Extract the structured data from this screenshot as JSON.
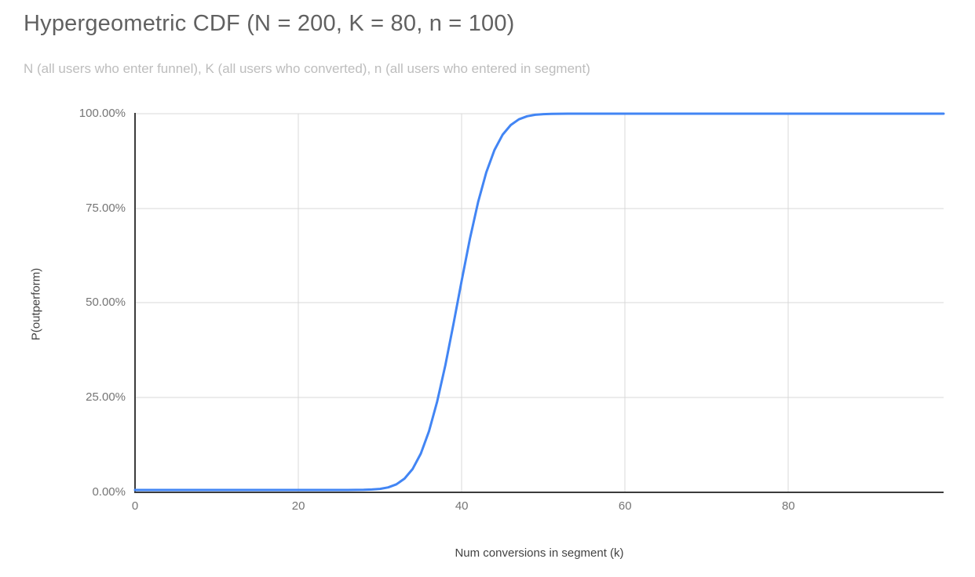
{
  "chart_data": {
    "type": "line",
    "title": "Hypergeometric CDF (N = 200, K = 80, n = 100)",
    "subtitle": "N (all users who enter funnel), K (all users who converted), n (all users who entered in segment)",
    "xlabel": "Num conversions in segment (k)",
    "ylabel": "P(outperform)",
    "xlim": [
      0,
      99
    ],
    "ylim": [
      0,
      1
    ],
    "grid": true,
    "legend": "none",
    "x_ticks": [
      {
        "value": 0,
        "label": "0"
      },
      {
        "value": 20,
        "label": "20"
      },
      {
        "value": 40,
        "label": "40"
      },
      {
        "value": 60,
        "label": "60"
      },
      {
        "value": 80,
        "label": "80"
      }
    ],
    "y_ticks": [
      {
        "value": 0,
        "label": "0.00%"
      },
      {
        "value": 0.25,
        "label": "25.00%"
      },
      {
        "value": 0.5,
        "label": "50.00%"
      },
      {
        "value": 0.75,
        "label": "75.00%"
      },
      {
        "value": 1,
        "label": "100.00%"
      }
    ],
    "series": [
      {
        "name": "P(outperform)",
        "color": "#4285f4",
        "x_start": 0,
        "x_step": 1,
        "y": [
          0,
          0,
          0,
          0,
          0,
          0,
          0,
          0,
          0,
          0,
          0,
          0,
          0,
          0,
          0,
          0,
          0,
          0,
          0,
          0,
          0,
          0,
          0,
          0,
          3e-06,
          1.2e-05,
          4.3e-05,
          0.00014,
          0.00042,
          0.00117,
          0.00297,
          0.00695,
          0.01504,
          0.03014,
          0.05604,
          0.09689,
          0.15616,
          0.2353,
          0.33257,
          0.44265,
          0.55735,
          0.66743,
          0.7647,
          0.84384,
          0.90311,
          0.94396,
          0.96986,
          0.98496,
          0.99305,
          0.99703,
          0.99883,
          0.99958,
          0.99986,
          0.99996,
          0.99999,
          1,
          1,
          1,
          1,
          1,
          1,
          1,
          1,
          1,
          1,
          1,
          1,
          1,
          1,
          1,
          1,
          1,
          1,
          1,
          1,
          1,
          1,
          1,
          1,
          1,
          1,
          1,
          1,
          1,
          1,
          1,
          1,
          1,
          1,
          1,
          1,
          1,
          1,
          1,
          1,
          1,
          1,
          1,
          1,
          1
        ]
      }
    ]
  },
  "theme": {
    "background": "#ffffff",
    "title_color": "#616161",
    "subtitle_color": "#bdbdbd",
    "axis_title_color": "#424242",
    "tick_label_color": "#757575",
    "gridline_color": "#d9d9d9",
    "axis_line_color": "#3c3c3c",
    "series_color": "#4285f4"
  }
}
